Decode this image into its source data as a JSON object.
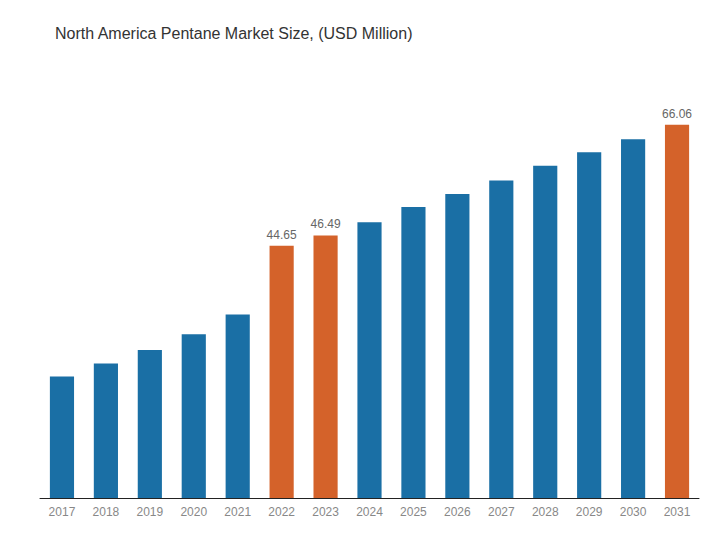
{
  "chart_data": {
    "type": "bar",
    "title": "North America Pentane Market Size, (USD Million)",
    "categories": [
      "2017",
      "2018",
      "2019",
      "2020",
      "2021",
      "2022",
      "2023",
      "2024",
      "2025",
      "2026",
      "2027",
      "2028",
      "2029",
      "2030",
      "2031"
    ],
    "values": [
      21.5,
      23.8,
      26.2,
      29.0,
      32.5,
      44.65,
      46.49,
      48.8,
      51.5,
      53.8,
      56.2,
      58.8,
      61.2,
      63.5,
      66.06
    ],
    "colors": [
      "#1a6fa5",
      "#1a6fa5",
      "#1a6fa5",
      "#1a6fa5",
      "#1a6fa5",
      "#d4622a",
      "#d4622a",
      "#1a6fa5",
      "#1a6fa5",
      "#1a6fa5",
      "#1a6fa5",
      "#1a6fa5",
      "#1a6fa5",
      "#1a6fa5",
      "#d4622a"
    ],
    "annotations": [
      {
        "x": "2022",
        "text": "44.65"
      },
      {
        "x": "2023",
        "text": "46.49"
      },
      {
        "x": "2031",
        "text": "66.06"
      }
    ],
    "ylim": [
      0,
      74
    ],
    "tick_labels": "x",
    "grid": false
  }
}
